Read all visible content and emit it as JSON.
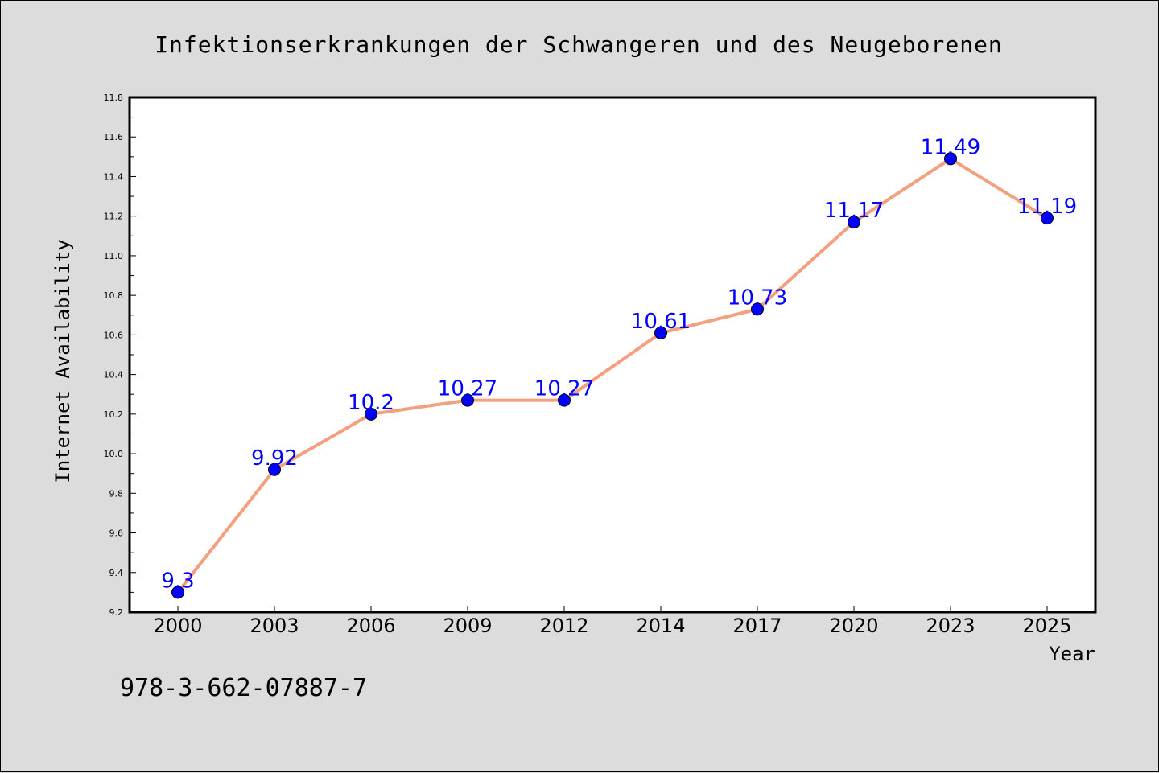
{
  "chart_data": {
    "type": "line",
    "title": "Infektionserkrankungen der Schwangeren und des Neugeborenen",
    "xlabel": "Year",
    "ylabel": "Internet Availability",
    "categories": [
      "2000",
      "2003",
      "2006",
      "2009",
      "2012",
      "2014",
      "2017",
      "2020",
      "2023",
      "2025"
    ],
    "series": [
      {
        "values": [
          9.3,
          9.92,
          10.2,
          10.27,
          10.27,
          10.61,
          10.73,
          11.17,
          11.49,
          11.19
        ],
        "labels": [
          "9.3",
          "9.92",
          "10.2",
          "10.27",
          "10.27",
          "10.61",
          "10.73",
          "11.17",
          "11.49",
          "11.19"
        ],
        "line_color": "#f4a07f",
        "marker_color": "#0000ff"
      }
    ],
    "ylim": [
      9.2,
      11.8
    ],
    "yticks": [
      "9.2",
      "9.4",
      "9.6",
      "9.8",
      "10.0",
      "10.2",
      "10.4",
      "10.6",
      "10.8",
      "11.0",
      "11.2",
      "11.4",
      "11.6",
      "11.8"
    ],
    "grid": false,
    "data_label_color": "#0000ff"
  },
  "footer": {
    "isbn": "978-3-662-07887-7"
  }
}
